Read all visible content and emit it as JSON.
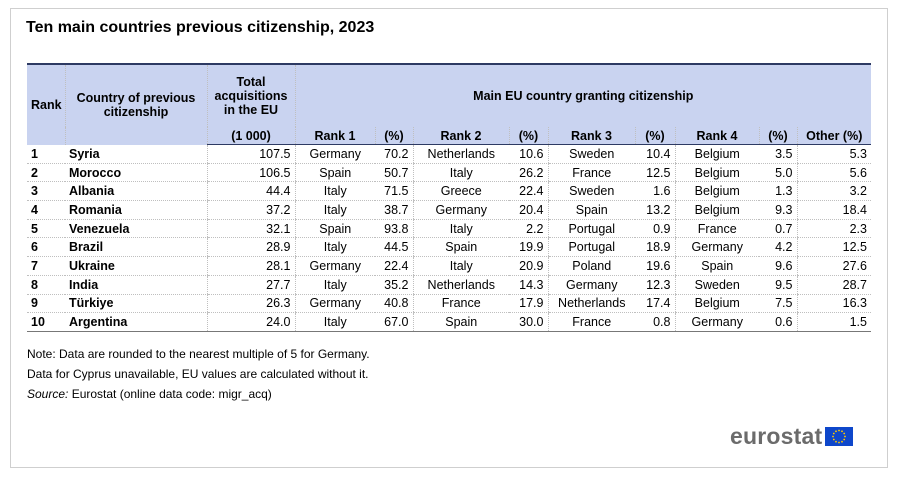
{
  "title": "Ten main countries previous citizenship, 2023",
  "headers": {
    "rank": "Rank",
    "country": "Country of previous citizenship",
    "total": "Total acquisitions in the EU",
    "total_unit": "(1 000)",
    "group": "Main EU country granting citizenship",
    "rank1": "Rank 1",
    "rank2": "Rank 2",
    "rank3": "Rank 3",
    "rank4": "Rank 4",
    "pct": "(%)",
    "other": "Other (%)"
  },
  "chart_data": {
    "type": "table",
    "rows": [
      {
        "rank": "1",
        "country": "Syria",
        "total": "107.5",
        "r1": "Germany",
        "p1": "70.2",
        "r2": "Netherlands",
        "p2": "10.6",
        "r3": "Sweden",
        "p3": "10.4",
        "r4": "Belgium",
        "p4": "3.5",
        "other": "5.3"
      },
      {
        "rank": "2",
        "country": "Morocco",
        "total": "106.5",
        "r1": "Spain",
        "p1": "50.7",
        "r2": "Italy",
        "p2": "26.2",
        "r3": "France",
        "p3": "12.5",
        "r4": "Belgium",
        "p4": "5.0",
        "other": "5.6"
      },
      {
        "rank": "3",
        "country": "Albania",
        "total": "44.4",
        "r1": "Italy",
        "p1": "71.5",
        "r2": "Greece",
        "p2": "22.4",
        "r3": "Sweden",
        "p3": "1.6",
        "r4": "Belgium",
        "p4": "1.3",
        "other": "3.2"
      },
      {
        "rank": "4",
        "country": "Romania",
        "total": "37.2",
        "r1": "Italy",
        "p1": "38.7",
        "r2": "Germany",
        "p2": "20.4",
        "r3": "Spain",
        "p3": "13.2",
        "r4": "Belgium",
        "p4": "9.3",
        "other": "18.4"
      },
      {
        "rank": "5",
        "country": "Venezuela",
        "total": "32.1",
        "r1": "Spain",
        "p1": "93.8",
        "r2": "Italy",
        "p2": "2.2",
        "r3": "Portugal",
        "p3": "0.9",
        "r4": "France",
        "p4": "0.7",
        "other": "2.3"
      },
      {
        "rank": "6",
        "country": "Brazil",
        "total": "28.9",
        "r1": "Italy",
        "p1": "44.5",
        "r2": "Spain",
        "p2": "19.9",
        "r3": "Portugal",
        "p3": "18.9",
        "r4": "Germany",
        "p4": "4.2",
        "other": "12.5"
      },
      {
        "rank": "7",
        "country": "Ukraine",
        "total": "28.1",
        "r1": "Germany",
        "p1": "22.4",
        "r2": "Italy",
        "p2": "20.9",
        "r3": "Poland",
        "p3": "19.6",
        "r4": "Spain",
        "p4": "9.6",
        "other": "27.6"
      },
      {
        "rank": "8",
        "country": "India",
        "total": "27.7",
        "r1": "Italy",
        "p1": "35.2",
        "r2": "Netherlands",
        "p2": "14.3",
        "r3": "Germany",
        "p3": "12.3",
        "r4": "Sweden",
        "p4": "9.5",
        "other": "28.7"
      },
      {
        "rank": "9",
        "country": "Türkiye",
        "total": "26.3",
        "r1": "Germany",
        "p1": "40.8",
        "r2": "France",
        "p2": "17.9",
        "r3": "Netherlands",
        "p3": "17.4",
        "r4": "Belgium",
        "p4": "7.5",
        "other": "16.3"
      },
      {
        "rank": "10",
        "country": "Argentina",
        "total": "24.0",
        "r1": "Italy",
        "p1": "67.0",
        "r2": "Spain",
        "p2": "30.0",
        "r3": "France",
        "p3": "0.8",
        "r4": "Germany",
        "p4": "0.6",
        "other": "1.5"
      }
    ]
  },
  "notes": {
    "line1": "Note: Data are rounded to the nearest multiple of 5 for Germany.",
    "line2": "Data for Cyprus unavailable, EU values are calculated without it.",
    "source_label": "Source:",
    "source_text": " Eurostat (online data code: migr_acq)"
  },
  "logo": {
    "text": "eurostat",
    "icon": "eu-flag-icon",
    "flag_color": "#0e47cb",
    "star_color": "#ffcc00"
  },
  "colors": {
    "header_bg": "#c9d3f0",
    "header_rule": "#2d3a63"
  }
}
